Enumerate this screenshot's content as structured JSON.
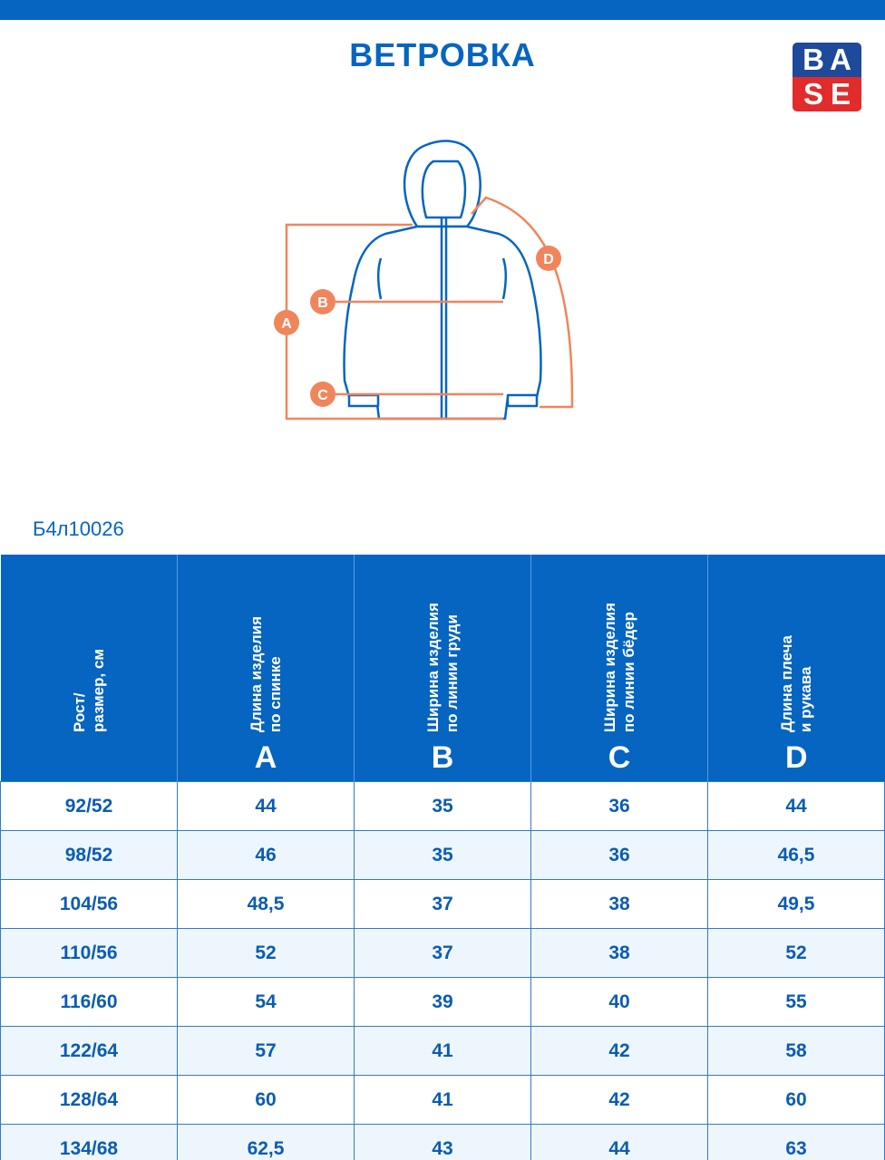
{
  "title": "ВЕТРОВКА",
  "logo": {
    "letters": [
      "B",
      "A",
      "S",
      "E"
    ],
    "colors": {
      "top": "#1d4a9a",
      "bottom": "#e22b2b"
    }
  },
  "diagram": {
    "markers": [
      "A",
      "B",
      "C",
      "D"
    ],
    "colors": {
      "outline": "#0565c0",
      "measure": "#f0855c"
    }
  },
  "article_code": "Б4л10026",
  "table": {
    "headers": [
      {
        "text": "Рост/\nразмер, см",
        "letter": ""
      },
      {
        "text": "Длина изделия\nпо спинке",
        "letter": "A"
      },
      {
        "text": "Ширина изделия\nпо линии груди",
        "letter": "B"
      },
      {
        "text": "Ширина изделия\nпо линии бёдер",
        "letter": "C"
      },
      {
        "text": "Длина плеча\nи рукава",
        "letter": "D"
      }
    ],
    "rows": [
      [
        "92/52",
        "44",
        "35",
        "36",
        "44"
      ],
      [
        "98/52",
        "46",
        "35",
        "36",
        "46,5"
      ],
      [
        "104/56",
        "48,5",
        "37",
        "38",
        "49,5"
      ],
      [
        "110/56",
        "52",
        "37",
        "38",
        "52"
      ],
      [
        "116/60",
        "54",
        "39",
        "40",
        "55"
      ],
      [
        "122/64",
        "57",
        "41",
        "42",
        "58"
      ],
      [
        "128/64",
        "60",
        "41",
        "42",
        "60"
      ],
      [
        "134/68",
        "62,5",
        "43",
        "44",
        "63"
      ]
    ]
  }
}
